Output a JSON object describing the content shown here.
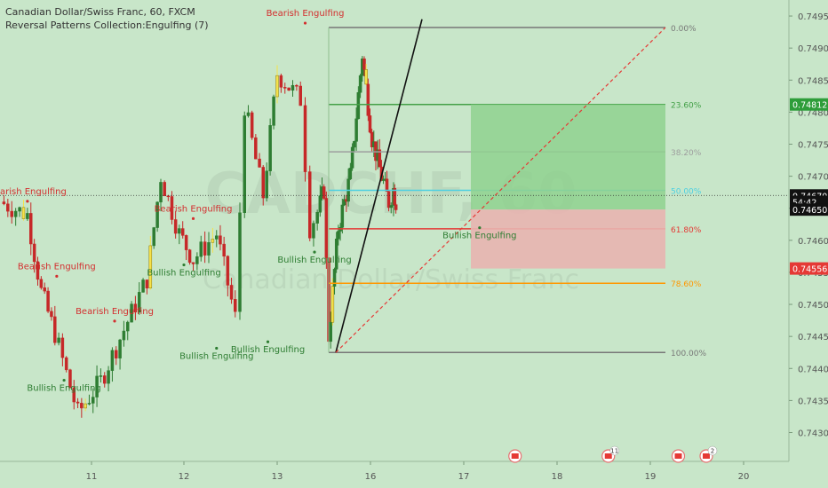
{
  "header": {
    "symbol_line": "Canadian Dollar/Swiss Franc, 60, FXCM",
    "indicator_line": "Reversal Patterns Collection:Engulfing (7)"
  },
  "watermark": {
    "symbol": "CADCHF, 60",
    "name": "Canadian Dollar/Swiss Franc"
  },
  "colors": {
    "background": "#c8e6c9",
    "bull_candle": "#2e7d32",
    "bear_candle": "#c62828",
    "engulf_candle": "#f5e14a",
    "profit_zone": "#8fd18f",
    "loss_zone": "#e8b4b0",
    "fib_orange": "#ff9800",
    "fib_red": "#e53935",
    "fib_green": "#43a047",
    "fib_cyan": "#4dd0e1"
  },
  "chart_data": {
    "type": "candlestick",
    "title": "Canadian Dollar/Swiss Franc, 60, FXCM",
    "ylim": [
      0.74255,
      0.74975
    ],
    "y_ticks": [
      "0.74950",
      "0.74900",
      "0.74850",
      "0.74800",
      "0.74750",
      "0.74700",
      "0.74650",
      "0.74600",
      "0.74550",
      "0.74500",
      "0.74450",
      "0.74400",
      "0.74350",
      "0.74300"
    ],
    "x_ticks": [
      {
        "label": "11",
        "day": 11
      },
      {
        "label": "12",
        "day": 12
      },
      {
        "label": "13",
        "day": 13
      },
      {
        "label": "16",
        "day": 16
      },
      {
        "label": "17",
        "day": 17
      },
      {
        "label": "18",
        "day": 18
      },
      {
        "label": "19",
        "day": 19
      },
      {
        "label": "20",
        "day": 20
      }
    ],
    "price_tags": [
      {
        "label": "0.74812",
        "value": 0.74812,
        "color": "#2e9d3a"
      },
      {
        "label": "0.74670",
        "value": 0.7467,
        "color": "#111111"
      },
      {
        "label": "54:42",
        "value": 0.7466,
        "color": "#111111"
      },
      {
        "label": "0.74650",
        "value": 0.74648,
        "color": "#111111"
      },
      {
        "label": "0.74556",
        "value": 0.74556,
        "color": "#e53935"
      }
    ],
    "fib_levels": [
      {
        "label": "0.00%",
        "value": 0.74932,
        "color": "#777777"
      },
      {
        "label": "23.60%",
        "value": 0.74812,
        "color": "#43a047"
      },
      {
        "label": "38.20%",
        "value": 0.74738,
        "color": "#9e9e9e"
      },
      {
        "label": "50.00%",
        "value": 0.74678,
        "color": "#4dd0e1"
      },
      {
        "label": "61.80%",
        "value": 0.74618,
        "color": "#e53935"
      },
      {
        "label": "78.60%",
        "value": 0.74533,
        "color": "#ff9800"
      },
      {
        "label": "100.00%",
        "value": 0.74425,
        "color": "#777777"
      }
    ],
    "annotations": [
      {
        "text": "Bearish Engulfing",
        "x": 13.3,
        "y": 0.7495,
        "kind": "bearish"
      },
      {
        "text": "Bearish Engulfing",
        "x": 10.3,
        "y": 0.74672,
        "kind": "bearish"
      },
      {
        "text": "Bearish Engulfing",
        "x": 12.1,
        "y": 0.74645,
        "kind": "bearish"
      },
      {
        "text": "Bearish Engulfing",
        "x": 10.62,
        "y": 0.74555,
        "kind": "bearish"
      },
      {
        "text": "Bearish Engulfing",
        "x": 11.25,
        "y": 0.74485,
        "kind": "bearish"
      },
      {
        "text": "Bullish Engulfing",
        "x": 12.0,
        "y": 0.74545,
        "kind": "bullish"
      },
      {
        "text": "Bullish Engulfing",
        "x": 13.4,
        "y": 0.74565,
        "kind": "bullish"
      },
      {
        "text": "Bullish Engulfing",
        "x": 12.35,
        "y": 0.74415,
        "kind": "bullish"
      },
      {
        "text": "Bullish Engulfing",
        "x": 12.9,
        "y": 0.74425,
        "kind": "bullish"
      },
      {
        "text": "Bullish Engulfing",
        "x": 10.7,
        "y": 0.74365,
        "kind": "bullish"
      },
      {
        "text": "Bullish Engulfing",
        "x": 17.17,
        "y": 0.74603,
        "kind": "bullish"
      }
    ],
    "events": [
      {
        "x": 17.55,
        "count": ""
      },
      {
        "x": 18.55,
        "count": "11"
      },
      {
        "x": 19.3,
        "count": ""
      },
      {
        "x": 19.6,
        "count": "2"
      }
    ]
  }
}
